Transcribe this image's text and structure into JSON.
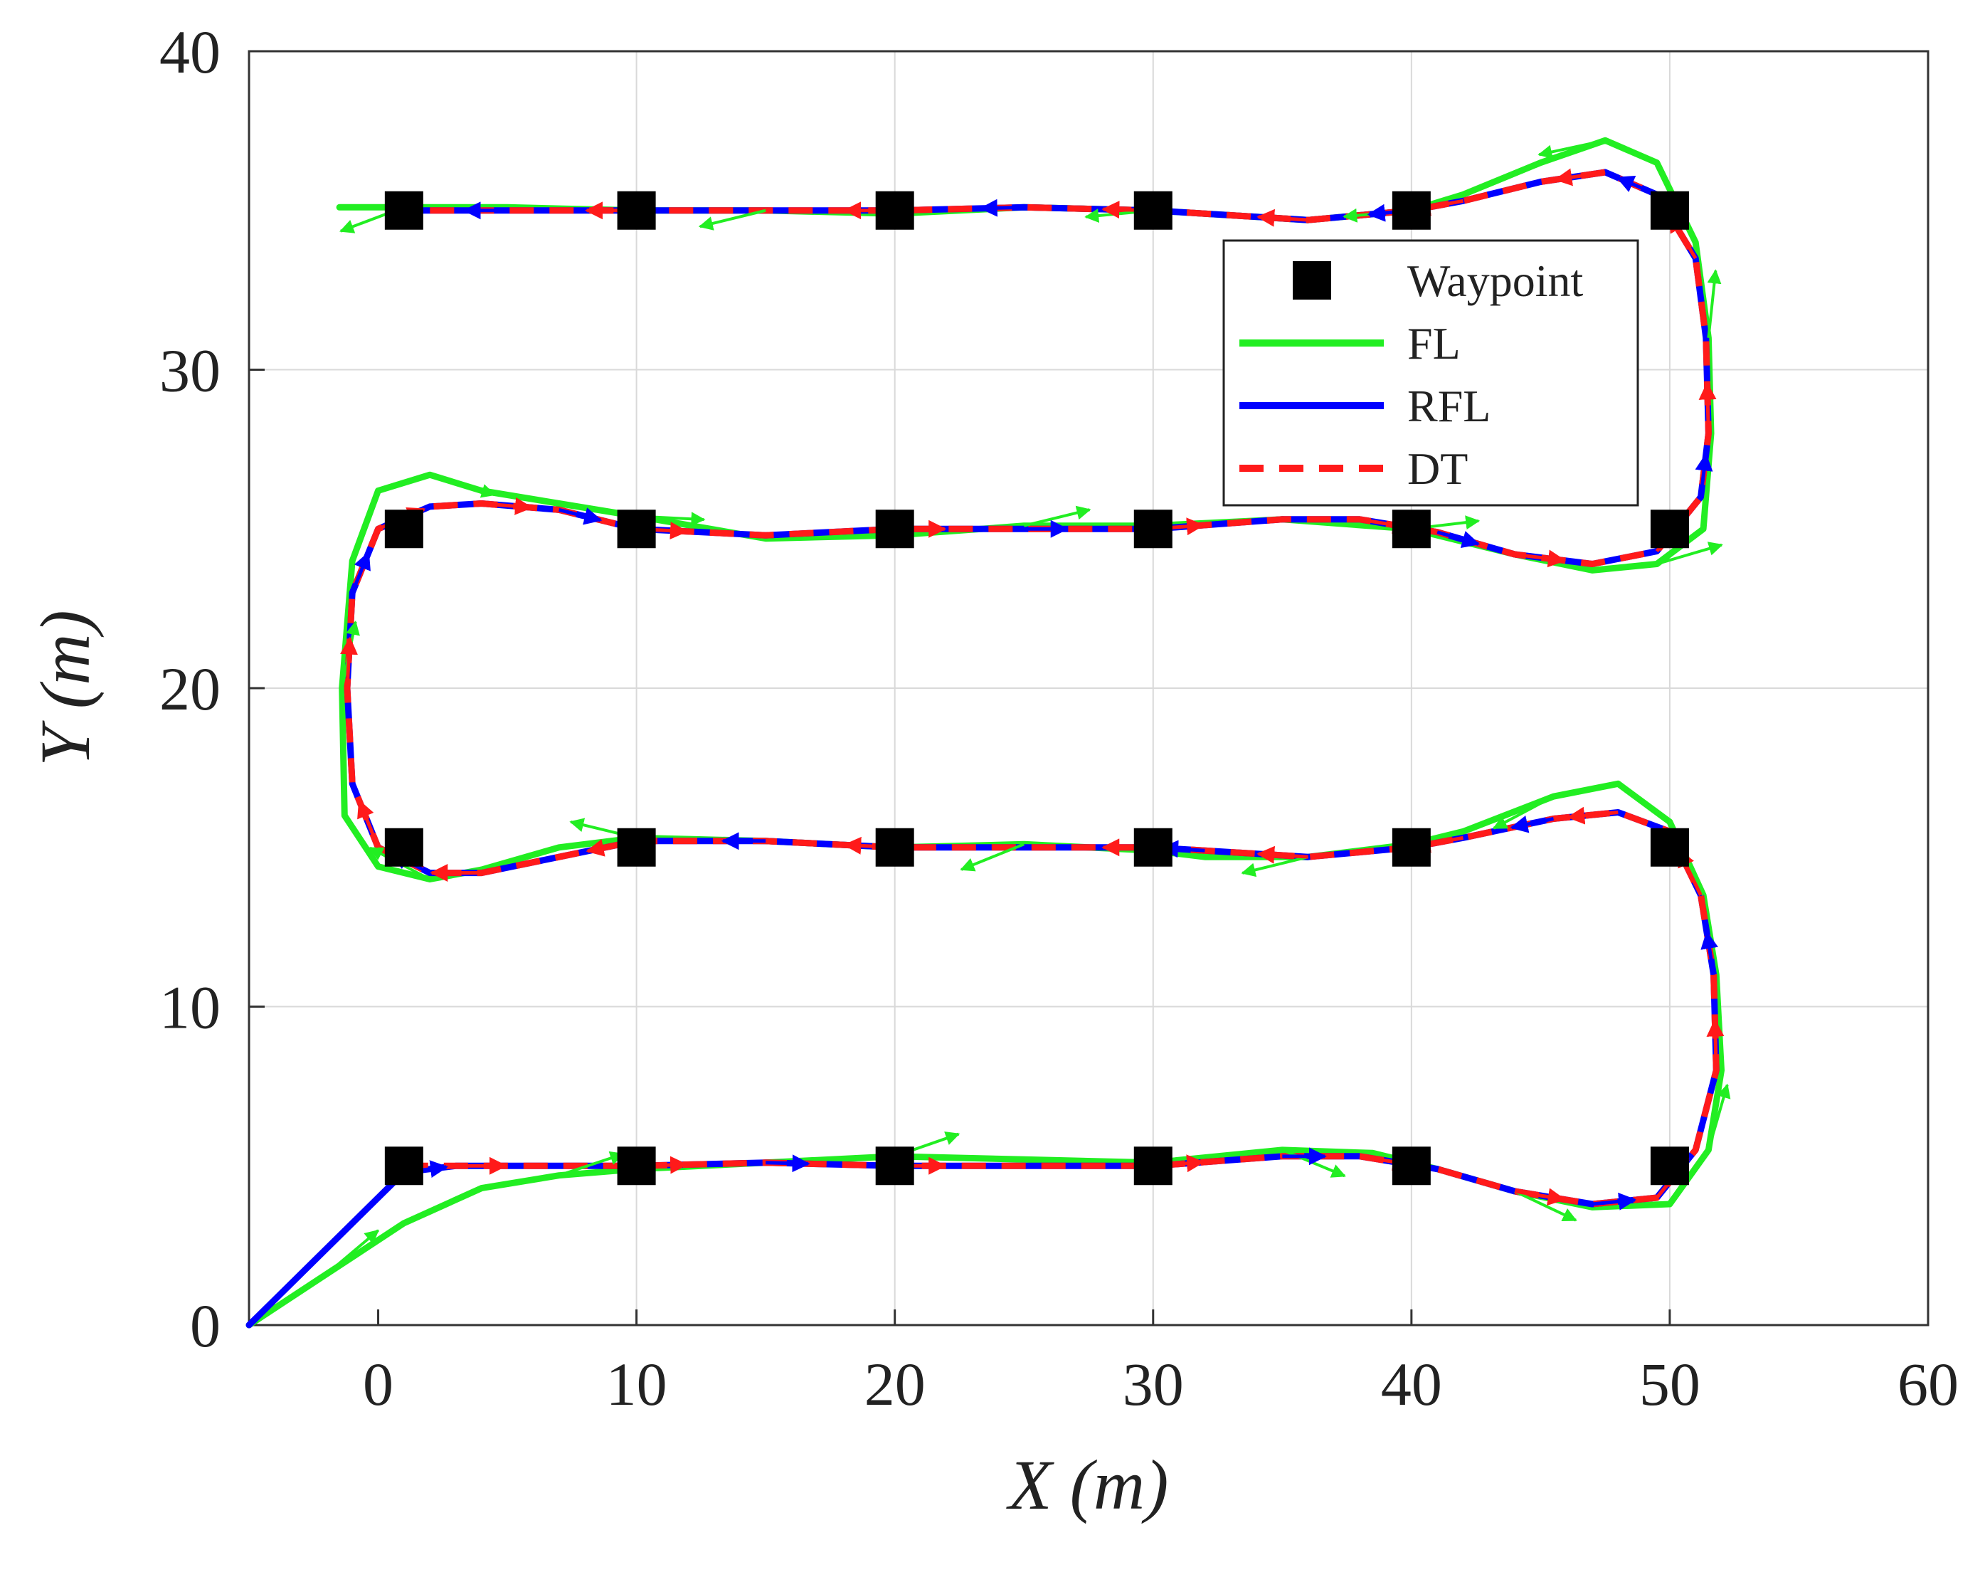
{
  "chart_data": {
    "type": "line",
    "title": "",
    "xlabel": "X (m)",
    "ylabel": "Y (m)",
    "xlim": [
      -5,
      60
    ],
    "ylim": [
      0,
      40
    ],
    "x_ticks": [
      0,
      10,
      20,
      30,
      40,
      50,
      60
    ],
    "y_ticks": [
      0,
      10,
      20,
      30,
      40
    ],
    "grid": true,
    "legend_position": "upper-right, inside axes",
    "waypoints": [
      [
        1,
        5
      ],
      [
        10,
        5
      ],
      [
        20,
        5
      ],
      [
        30,
        5
      ],
      [
        40,
        5
      ],
      [
        50,
        5
      ],
      [
        50,
        15
      ],
      [
        40,
        15
      ],
      [
        30,
        15
      ],
      [
        20,
        15
      ],
      [
        10,
        15
      ],
      [
        1,
        15
      ],
      [
        1,
        25
      ],
      [
        10,
        25
      ],
      [
        20,
        25
      ],
      [
        30,
        25
      ],
      [
        40,
        25
      ],
      [
        50,
        25
      ],
      [
        50,
        35
      ],
      [
        40,
        35
      ],
      [
        30,
        35
      ],
      [
        20,
        35
      ],
      [
        10,
        35
      ],
      [
        1,
        35
      ]
    ],
    "series": [
      {
        "name": "Waypoint",
        "color": "#000000",
        "marker": "square"
      },
      {
        "name": "FL",
        "color": "#22ee22",
        "line_style": "solid",
        "points": [
          [
            -5,
            0
          ],
          [
            -2,
            1.6
          ],
          [
            1,
            3.2
          ],
          [
            4,
            4.3
          ],
          [
            7,
            4.7
          ],
          [
            10,
            4.9
          ],
          [
            15,
            5.1
          ],
          [
            20,
            5.3
          ],
          [
            25,
            5.2
          ],
          [
            30,
            5.1
          ],
          [
            35,
            5.5
          ],
          [
            38.5,
            5.4
          ],
          [
            41,
            4.9
          ],
          [
            44,
            4.2
          ],
          [
            47,
            3.7
          ],
          [
            50,
            3.8
          ],
          [
            51.5,
            5.5
          ],
          [
            52,
            8
          ],
          [
            51.8,
            11
          ],
          [
            51.3,
            13.5
          ],
          [
            50,
            15.8
          ],
          [
            48,
            17
          ],
          [
            45.5,
            16.6
          ],
          [
            42,
            15.5
          ],
          [
            40,
            15.1
          ],
          [
            36,
            14.7
          ],
          [
            32,
            14.7
          ],
          [
            30,
            14.9
          ],
          [
            25,
            15.1
          ],
          [
            20,
            15
          ],
          [
            15,
            15.2
          ],
          [
            10,
            15.3
          ],
          [
            7,
            15
          ],
          [
            4,
            14.3
          ],
          [
            2,
            14
          ],
          [
            0,
            14.4
          ],
          [
            -1.3,
            16
          ],
          [
            -1.4,
            20
          ],
          [
            -1,
            24
          ],
          [
            0,
            26.2
          ],
          [
            2,
            26.7
          ],
          [
            4,
            26.2
          ],
          [
            7,
            25.8
          ],
          [
            10,
            25.4
          ],
          [
            15,
            24.7
          ],
          [
            20,
            24.8
          ],
          [
            25,
            25.1
          ],
          [
            30,
            25.1
          ],
          [
            35,
            25.3
          ],
          [
            40,
            25
          ],
          [
            44,
            24.2
          ],
          [
            47,
            23.7
          ],
          [
            49.5,
            23.9
          ],
          [
            51.3,
            25
          ],
          [
            51.6,
            28
          ],
          [
            51.5,
            31
          ],
          [
            51,
            34
          ],
          [
            49.5,
            36.5
          ],
          [
            47.5,
            37.2
          ],
          [
            45,
            36.5
          ],
          [
            42,
            35.5
          ],
          [
            40,
            35
          ],
          [
            36,
            34.7
          ],
          [
            32,
            34.9
          ],
          [
            30,
            35
          ],
          [
            25,
            35.1
          ],
          [
            20,
            34.9
          ],
          [
            15,
            35
          ],
          [
            10,
            35
          ],
          [
            5,
            35.1
          ],
          [
            1,
            35.1
          ],
          [
            -1.5,
            35.1
          ]
        ]
      },
      {
        "name": "RFL",
        "color": "#0000ff",
        "line_style": "solid",
        "points": [
          [
            -5,
            0
          ],
          [
            1,
            4.8
          ],
          [
            3,
            5
          ],
          [
            6,
            5
          ],
          [
            10,
            5
          ],
          [
            15,
            5.1
          ],
          [
            20,
            5
          ],
          [
            25,
            5
          ],
          [
            30,
            5
          ],
          [
            35,
            5.3
          ],
          [
            38,
            5.3
          ],
          [
            41,
            4.9
          ],
          [
            44,
            4.2
          ],
          [
            47,
            3.8
          ],
          [
            49.5,
            4
          ],
          [
            51,
            5.5
          ],
          [
            51.8,
            8
          ],
          [
            51.7,
            11
          ],
          [
            51.2,
            13.5
          ],
          [
            50,
            15.5
          ],
          [
            48,
            16.1
          ],
          [
            45.5,
            15.9
          ],
          [
            42,
            15.3
          ],
          [
            40,
            15
          ],
          [
            36,
            14.7
          ],
          [
            32,
            14.9
          ],
          [
            30,
            15
          ],
          [
            25,
            15
          ],
          [
            20,
            15
          ],
          [
            15,
            15.2
          ],
          [
            10,
            15.2
          ],
          [
            7,
            14.7
          ],
          [
            4,
            14.2
          ],
          [
            2,
            14.2
          ],
          [
            0,
            15
          ],
          [
            -1,
            17
          ],
          [
            -1.2,
            20
          ],
          [
            -1,
            23
          ],
          [
            0,
            25
          ],
          [
            2,
            25.7
          ],
          [
            4,
            25.8
          ],
          [
            7,
            25.6
          ],
          [
            10,
            25
          ],
          [
            15,
            24.8
          ],
          [
            20,
            25
          ],
          [
            25,
            25
          ],
          [
            30,
            25
          ],
          [
            35,
            25.3
          ],
          [
            38,
            25.3
          ],
          [
            41,
            24.9
          ],
          [
            44,
            24.2
          ],
          [
            47,
            23.9
          ],
          [
            49.5,
            24.3
          ],
          [
            51.2,
            26
          ],
          [
            51.5,
            28
          ],
          [
            51.4,
            31
          ],
          [
            51,
            33.5
          ],
          [
            49.5,
            35.5
          ],
          [
            47.5,
            36.2
          ],
          [
            45,
            35.9
          ],
          [
            42,
            35.3
          ],
          [
            40,
            35
          ],
          [
            36,
            34.7
          ],
          [
            32,
            34.9
          ],
          [
            30,
            35
          ],
          [
            25,
            35.1
          ],
          [
            20,
            35
          ],
          [
            15,
            35
          ],
          [
            10,
            35
          ],
          [
            5,
            35
          ],
          [
            1,
            35
          ]
        ]
      },
      {
        "name": "DT",
        "color": "#ff1a1a",
        "line_style": "dashed",
        "points": [
          [
            1,
            5
          ],
          [
            3,
            5
          ],
          [
            6,
            5
          ],
          [
            10,
            5
          ],
          [
            15,
            5.1
          ],
          [
            20,
            5
          ],
          [
            25,
            5
          ],
          [
            30,
            5
          ],
          [
            35,
            5.3
          ],
          [
            38,
            5.3
          ],
          [
            41,
            4.9
          ],
          [
            44,
            4.2
          ],
          [
            47,
            3.8
          ],
          [
            49.5,
            4
          ],
          [
            51,
            5.5
          ],
          [
            51.8,
            8
          ],
          [
            51.7,
            11
          ],
          [
            51.2,
            13.5
          ],
          [
            50,
            15.5
          ],
          [
            48,
            16.1
          ],
          [
            45.5,
            15.9
          ],
          [
            42,
            15.3
          ],
          [
            40,
            15
          ],
          [
            36,
            14.7
          ],
          [
            32,
            14.9
          ],
          [
            30,
            15
          ],
          [
            25,
            15
          ],
          [
            20,
            15
          ],
          [
            15,
            15.2
          ],
          [
            10,
            15.2
          ],
          [
            7,
            14.7
          ],
          [
            4,
            14.2
          ],
          [
            2,
            14.2
          ],
          [
            0,
            15
          ],
          [
            -1,
            17
          ],
          [
            -1.2,
            20
          ],
          [
            -1,
            23
          ],
          [
            0,
            25
          ],
          [
            2,
            25.7
          ],
          [
            4,
            25.8
          ],
          [
            7,
            25.6
          ],
          [
            10,
            25
          ],
          [
            15,
            24.8
          ],
          [
            20,
            25
          ],
          [
            25,
            25
          ],
          [
            30,
            25
          ],
          [
            35,
            25.3
          ],
          [
            38,
            25.3
          ],
          [
            41,
            24.9
          ],
          [
            44,
            24.2
          ],
          [
            47,
            23.9
          ],
          [
            49.5,
            24.3
          ],
          [
            51.2,
            26
          ],
          [
            51.5,
            28
          ],
          [
            51.4,
            31
          ],
          [
            51,
            33.5
          ],
          [
            49.5,
            35.5
          ],
          [
            47.5,
            36.2
          ],
          [
            45,
            35.9
          ],
          [
            42,
            35.3
          ],
          [
            40,
            35
          ],
          [
            36,
            34.7
          ],
          [
            32,
            34.9
          ],
          [
            30,
            35
          ],
          [
            25,
            35.1
          ],
          [
            20,
            35
          ],
          [
            15,
            35
          ],
          [
            10,
            35
          ],
          [
            5,
            35
          ],
          [
            1,
            35
          ]
        ]
      }
    ]
  }
}
